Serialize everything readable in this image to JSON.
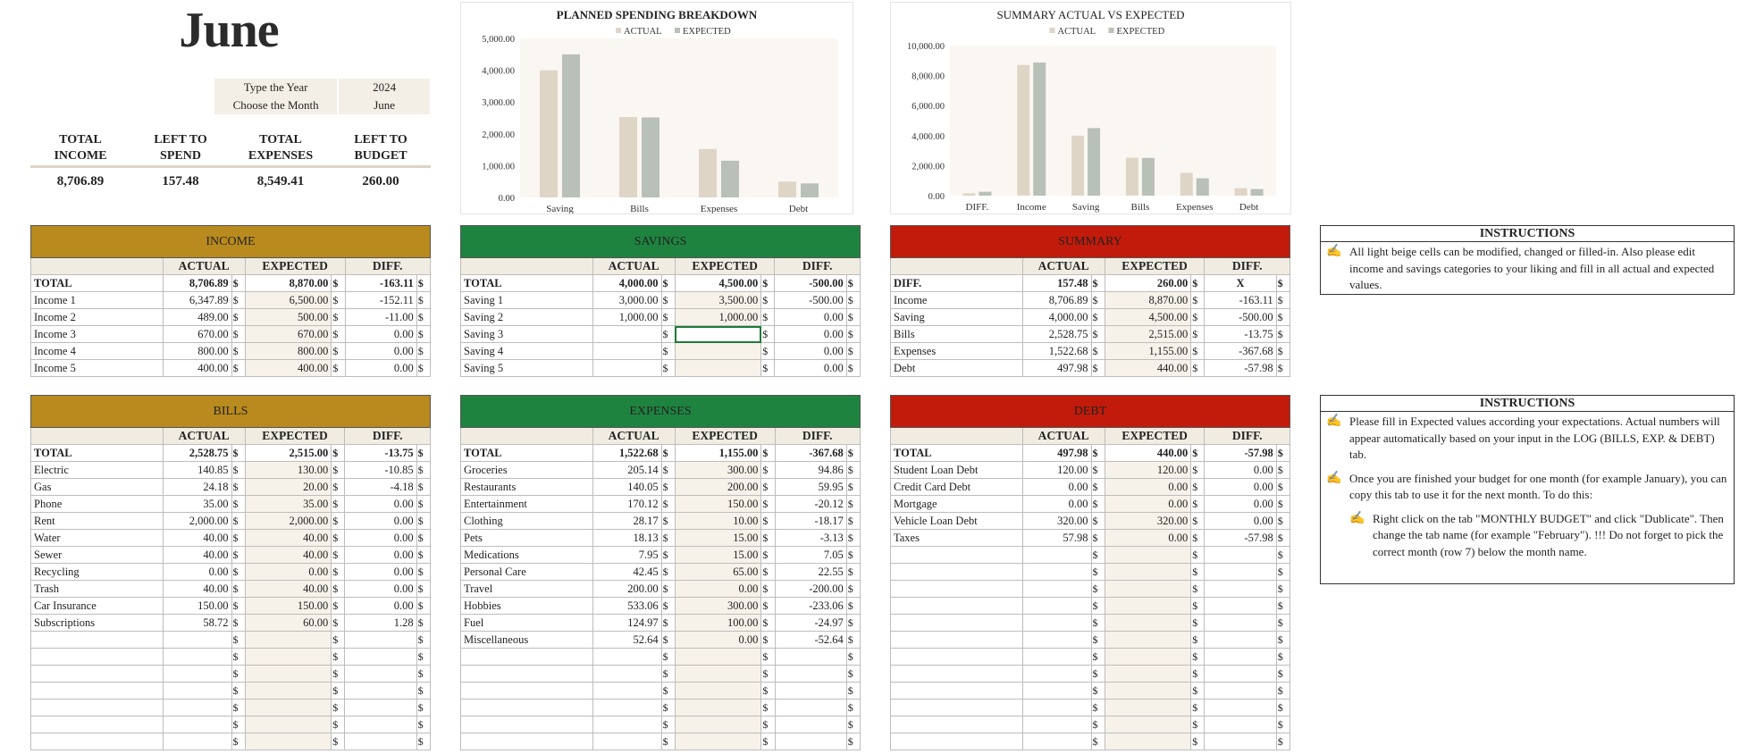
{
  "month_title": "June",
  "selector": {
    "year_label": "Type the Year",
    "year_value": "2024",
    "month_label": "Choose the Month",
    "month_value": "June"
  },
  "kpis": [
    {
      "label_line1": "TOTAL",
      "label_line2": "INCOME",
      "value": "8,706.89"
    },
    {
      "label_line1": "LEFT TO",
      "label_line2": "SPEND",
      "value": "157.48"
    },
    {
      "label_line1": "TOTAL",
      "label_line2": "EXPENSES",
      "value": "8,549.41"
    },
    {
      "label_line1": "LEFT TO",
      "label_line2": "BUDGET",
      "value": "260.00"
    }
  ],
  "colors": {
    "income": "#b98a1e",
    "savings": "#1f8340",
    "summary": "#c21b0b",
    "actual_bar": "#dfd5c7",
    "expected_bar": "#b8c0b7",
    "plot_bg": "#faf7f2"
  },
  "chart_data": [
    {
      "type": "bar",
      "title": "PLANNED SPENDING BREAKDOWN",
      "categories": [
        "Saving",
        "Bills",
        "Expenses",
        "Debt"
      ],
      "series": [
        {
          "name": "ACTUAL",
          "values": [
            4000.0,
            2528.75,
            1522.68,
            497.98
          ]
        },
        {
          "name": "EXPECTED",
          "values": [
            4500.0,
            2515.0,
            1155.0,
            440.0
          ]
        }
      ],
      "yticks": [
        "0.00",
        "1,000.00",
        "2,000.00",
        "3,000.00",
        "4,000.00",
        "5,000.00"
      ],
      "ylim": [
        0,
        5000
      ],
      "legend": "top"
    },
    {
      "type": "bar",
      "title": "SUMMARY ACTUAL VS EXPECTED",
      "categories": [
        "DIFF.",
        "Income",
        "Saving",
        "Bills",
        "Expenses",
        "Debt"
      ],
      "series": [
        {
          "name": "ACTUAL",
          "values": [
            157.48,
            8706.89,
            4000.0,
            2528.75,
            1522.68,
            497.98
          ]
        },
        {
          "name": "EXPECTED",
          "values": [
            260.0,
            8870.0,
            4500.0,
            2515.0,
            1155.0,
            440.0
          ]
        }
      ],
      "yticks": [
        "0.00",
        "2,000.00",
        "4,000.00",
        "6,000.00",
        "8,000.00",
        "10,000.00"
      ],
      "ylim": [
        0,
        10000
      ],
      "legend": "top"
    }
  ],
  "tables": {
    "income": {
      "title": "INCOME",
      "headers": [
        "ACTUAL",
        "EXPECTED",
        "DIFF."
      ],
      "total": {
        "label": "TOTAL",
        "actual": "8,706.89",
        "expected": "8,870.00",
        "diff": "-163.11"
      },
      "rows": [
        {
          "label": "Income 1",
          "actual": "6,347.89",
          "expected": "6,500.00",
          "diff": "-152.11"
        },
        {
          "label": "Income 2",
          "actual": "489.00",
          "expected": "500.00",
          "diff": "-11.00"
        },
        {
          "label": "Income 3",
          "actual": "670.00",
          "expected": "670.00",
          "diff": "0.00"
        },
        {
          "label": "Income 4",
          "actual": "800.00",
          "expected": "800.00",
          "diff": "0.00"
        },
        {
          "label": "Income 5",
          "actual": "400.00",
          "expected": "400.00",
          "diff": "0.00"
        }
      ]
    },
    "savings": {
      "title": "SAVINGS",
      "headers": [
        "ACTUAL",
        "EXPECTED",
        "DIFF."
      ],
      "total": {
        "label": "TOTAL",
        "actual": "4,000.00",
        "expected": "4,500.00",
        "diff": "-500.00"
      },
      "rows": [
        {
          "label": "Saving 1",
          "actual": "3,000.00",
          "expected": "3,500.00",
          "diff": "-500.00"
        },
        {
          "label": "Saving 2",
          "actual": "1,000.00",
          "expected": "1,000.00",
          "diff": "0.00"
        },
        {
          "label": "Saving 3",
          "actual": "",
          "expected": "",
          "diff": "0.00"
        },
        {
          "label": "Saving 4",
          "actual": "",
          "expected": "",
          "diff": "0.00"
        },
        {
          "label": "Saving 5",
          "actual": "",
          "expected": "",
          "diff": "0.00"
        }
      ]
    },
    "summary": {
      "title": "SUMMARY",
      "headers": [
        "ACTUAL",
        "EXPECTED",
        "DIFF."
      ],
      "total": {
        "label": "DIFF.",
        "actual": "157.48",
        "expected": "260.00",
        "diff": "X"
      },
      "rows": [
        {
          "label": "Income",
          "actual": "8,706.89",
          "expected": "8,870.00",
          "diff": "-163.11"
        },
        {
          "label": "Saving",
          "actual": "4,000.00",
          "expected": "4,500.00",
          "diff": "-500.00"
        },
        {
          "label": "Bills",
          "actual": "2,528.75",
          "expected": "2,515.00",
          "diff": "-13.75"
        },
        {
          "label": "Expenses",
          "actual": "1,522.68",
          "expected": "1,155.00",
          "diff": "-367.68"
        },
        {
          "label": "Debt",
          "actual": "497.98",
          "expected": "440.00",
          "diff": "-57.98"
        }
      ]
    },
    "bills": {
      "title": "BILLS",
      "headers": [
        "ACTUAL",
        "EXPECTED",
        "DIFF."
      ],
      "total": {
        "label": "TOTAL",
        "actual": "2,528.75",
        "expected": "2,515.00",
        "diff": "-13.75"
      },
      "rows": [
        {
          "label": "Electric",
          "actual": "140.85",
          "expected": "130.00",
          "diff": "-10.85"
        },
        {
          "label": "Gas",
          "actual": "24.18",
          "expected": "20.00",
          "diff": "-4.18"
        },
        {
          "label": "Phone",
          "actual": "35.00",
          "expected": "35.00",
          "diff": "0.00"
        },
        {
          "label": "Rent",
          "actual": "2,000.00",
          "expected": "2,000.00",
          "diff": "0.00"
        },
        {
          "label": "Water",
          "actual": "40.00",
          "expected": "40.00",
          "diff": "0.00"
        },
        {
          "label": "Sewer",
          "actual": "40.00",
          "expected": "40.00",
          "diff": "0.00"
        },
        {
          "label": "Recycling",
          "actual": "0.00",
          "expected": "0.00",
          "diff": "0.00"
        },
        {
          "label": "Trash",
          "actual": "40.00",
          "expected": "40.00",
          "diff": "0.00"
        },
        {
          "label": "Car Insurance",
          "actual": "150.00",
          "expected": "150.00",
          "diff": "0.00"
        },
        {
          "label": "Subscriptions",
          "actual": "58.72",
          "expected": "60.00",
          "diff": "1.28"
        },
        {
          "label": "",
          "actual": "",
          "expected": "",
          "diff": ""
        },
        {
          "label": "",
          "actual": "",
          "expected": "",
          "diff": ""
        },
        {
          "label": "",
          "actual": "",
          "expected": "",
          "diff": ""
        },
        {
          "label": "",
          "actual": "",
          "expected": "",
          "diff": ""
        },
        {
          "label": "",
          "actual": "",
          "expected": "",
          "diff": ""
        },
        {
          "label": "",
          "actual": "",
          "expected": "",
          "diff": ""
        },
        {
          "label": "",
          "actual": "",
          "expected": "",
          "diff": ""
        }
      ]
    },
    "expenses": {
      "title": "EXPENSES",
      "headers": [
        "ACTUAL",
        "EXPECTED",
        "DIFF."
      ],
      "total": {
        "label": "TOTAL",
        "actual": "1,522.68",
        "expected": "1,155.00",
        "diff": "-367.68"
      },
      "rows": [
        {
          "label": "Groceries",
          "actual": "205.14",
          "expected": "300.00",
          "diff": "94.86"
        },
        {
          "label": "Restaurants",
          "actual": "140.05",
          "expected": "200.00",
          "diff": "59.95"
        },
        {
          "label": "Entertainment",
          "actual": "170.12",
          "expected": "150.00",
          "diff": "-20.12"
        },
        {
          "label": "Clothing",
          "actual": "28.17",
          "expected": "10.00",
          "diff": "-18.17"
        },
        {
          "label": "Pets",
          "actual": "18.13",
          "expected": "15.00",
          "diff": "-3.13"
        },
        {
          "label": "Medications",
          "actual": "7.95",
          "expected": "15.00",
          "diff": "7.05"
        },
        {
          "label": "Personal Care",
          "actual": "42.45",
          "expected": "65.00",
          "diff": "22.55"
        },
        {
          "label": "Travel",
          "actual": "200.00",
          "expected": "0.00",
          "diff": "-200.00"
        },
        {
          "label": "Hobbies",
          "actual": "533.06",
          "expected": "300.00",
          "diff": "-233.06"
        },
        {
          "label": "Fuel",
          "actual": "124.97",
          "expected": "100.00",
          "diff": "-24.97"
        },
        {
          "label": "Miscellaneous",
          "actual": "52.64",
          "expected": "0.00",
          "diff": "-52.64"
        },
        {
          "label": "",
          "actual": "",
          "expected": "",
          "diff": ""
        },
        {
          "label": "",
          "actual": "",
          "expected": "",
          "diff": ""
        },
        {
          "label": "",
          "actual": "",
          "expected": "",
          "diff": ""
        },
        {
          "label": "",
          "actual": "",
          "expected": "",
          "diff": ""
        },
        {
          "label": "",
          "actual": "",
          "expected": "",
          "diff": ""
        },
        {
          "label": "",
          "actual": "",
          "expected": "",
          "diff": ""
        }
      ]
    },
    "debt": {
      "title": "DEBT",
      "headers": [
        "ACTUAL",
        "EXPECTED",
        "DIFF."
      ],
      "total": {
        "label": "TOTAL",
        "actual": "497.98",
        "expected": "440.00",
        "diff": "-57.98"
      },
      "rows": [
        {
          "label": "Student Loan Debt",
          "actual": "120.00",
          "expected": "120.00",
          "diff": "0.00"
        },
        {
          "label": "Credit Card Debt",
          "actual": "0.00",
          "expected": "0.00",
          "diff": "0.00"
        },
        {
          "label": "Mortgage",
          "actual": "0.00",
          "expected": "0.00",
          "diff": "0.00"
        },
        {
          "label": "Vehicle Loan Debt",
          "actual": "320.00",
          "expected": "320.00",
          "diff": "0.00"
        },
        {
          "label": "Taxes",
          "actual": "57.98",
          "expected": "0.00",
          "diff": "-57.98"
        },
        {
          "label": "",
          "actual": "",
          "expected": "",
          "diff": ""
        },
        {
          "label": "",
          "actual": "",
          "expected": "",
          "diff": ""
        },
        {
          "label": "",
          "actual": "",
          "expected": "",
          "diff": ""
        },
        {
          "label": "",
          "actual": "",
          "expected": "",
          "diff": ""
        },
        {
          "label": "",
          "actual": "",
          "expected": "",
          "diff": ""
        },
        {
          "label": "",
          "actual": "",
          "expected": "",
          "diff": ""
        },
        {
          "label": "",
          "actual": "",
          "expected": "",
          "diff": ""
        },
        {
          "label": "",
          "actual": "",
          "expected": "",
          "diff": ""
        },
        {
          "label": "",
          "actual": "",
          "expected": "",
          "diff": ""
        },
        {
          "label": "",
          "actual": "",
          "expected": "",
          "diff": ""
        },
        {
          "label": "",
          "actual": "",
          "expected": "",
          "diff": ""
        },
        {
          "label": "",
          "actual": "",
          "expected": "",
          "diff": ""
        }
      ]
    }
  },
  "currency_symbol": "$",
  "instructions_1": {
    "title": "INSTRUCTIONS",
    "icon": "hand-pencil-icon",
    "text": "All light beige cells can be modified, changed or filled-in. Also please edit income and savings categories to your liking and fill in all actual and expected values."
  },
  "instructions_2": {
    "title": "INSTRUCTIONS",
    "icon": "hand-pencil-icon",
    "para1": "Please fill in Expected values according your expectations. Actual numbers will appear automatically based on your input in the LOG (BILLS, EXP. & DEBT) tab.",
    "para2": "Once you are finished your budget for one month (for example January), you can copy this tab to use it for the next month. To do this:",
    "para3": "Right click on the tab \"MONTHLY BUDGET\" and click \"Dublicate\". Then change the tab name (for example \"February\"). !!! Do not forget to pick the correct month (row 7) below the month name."
  }
}
